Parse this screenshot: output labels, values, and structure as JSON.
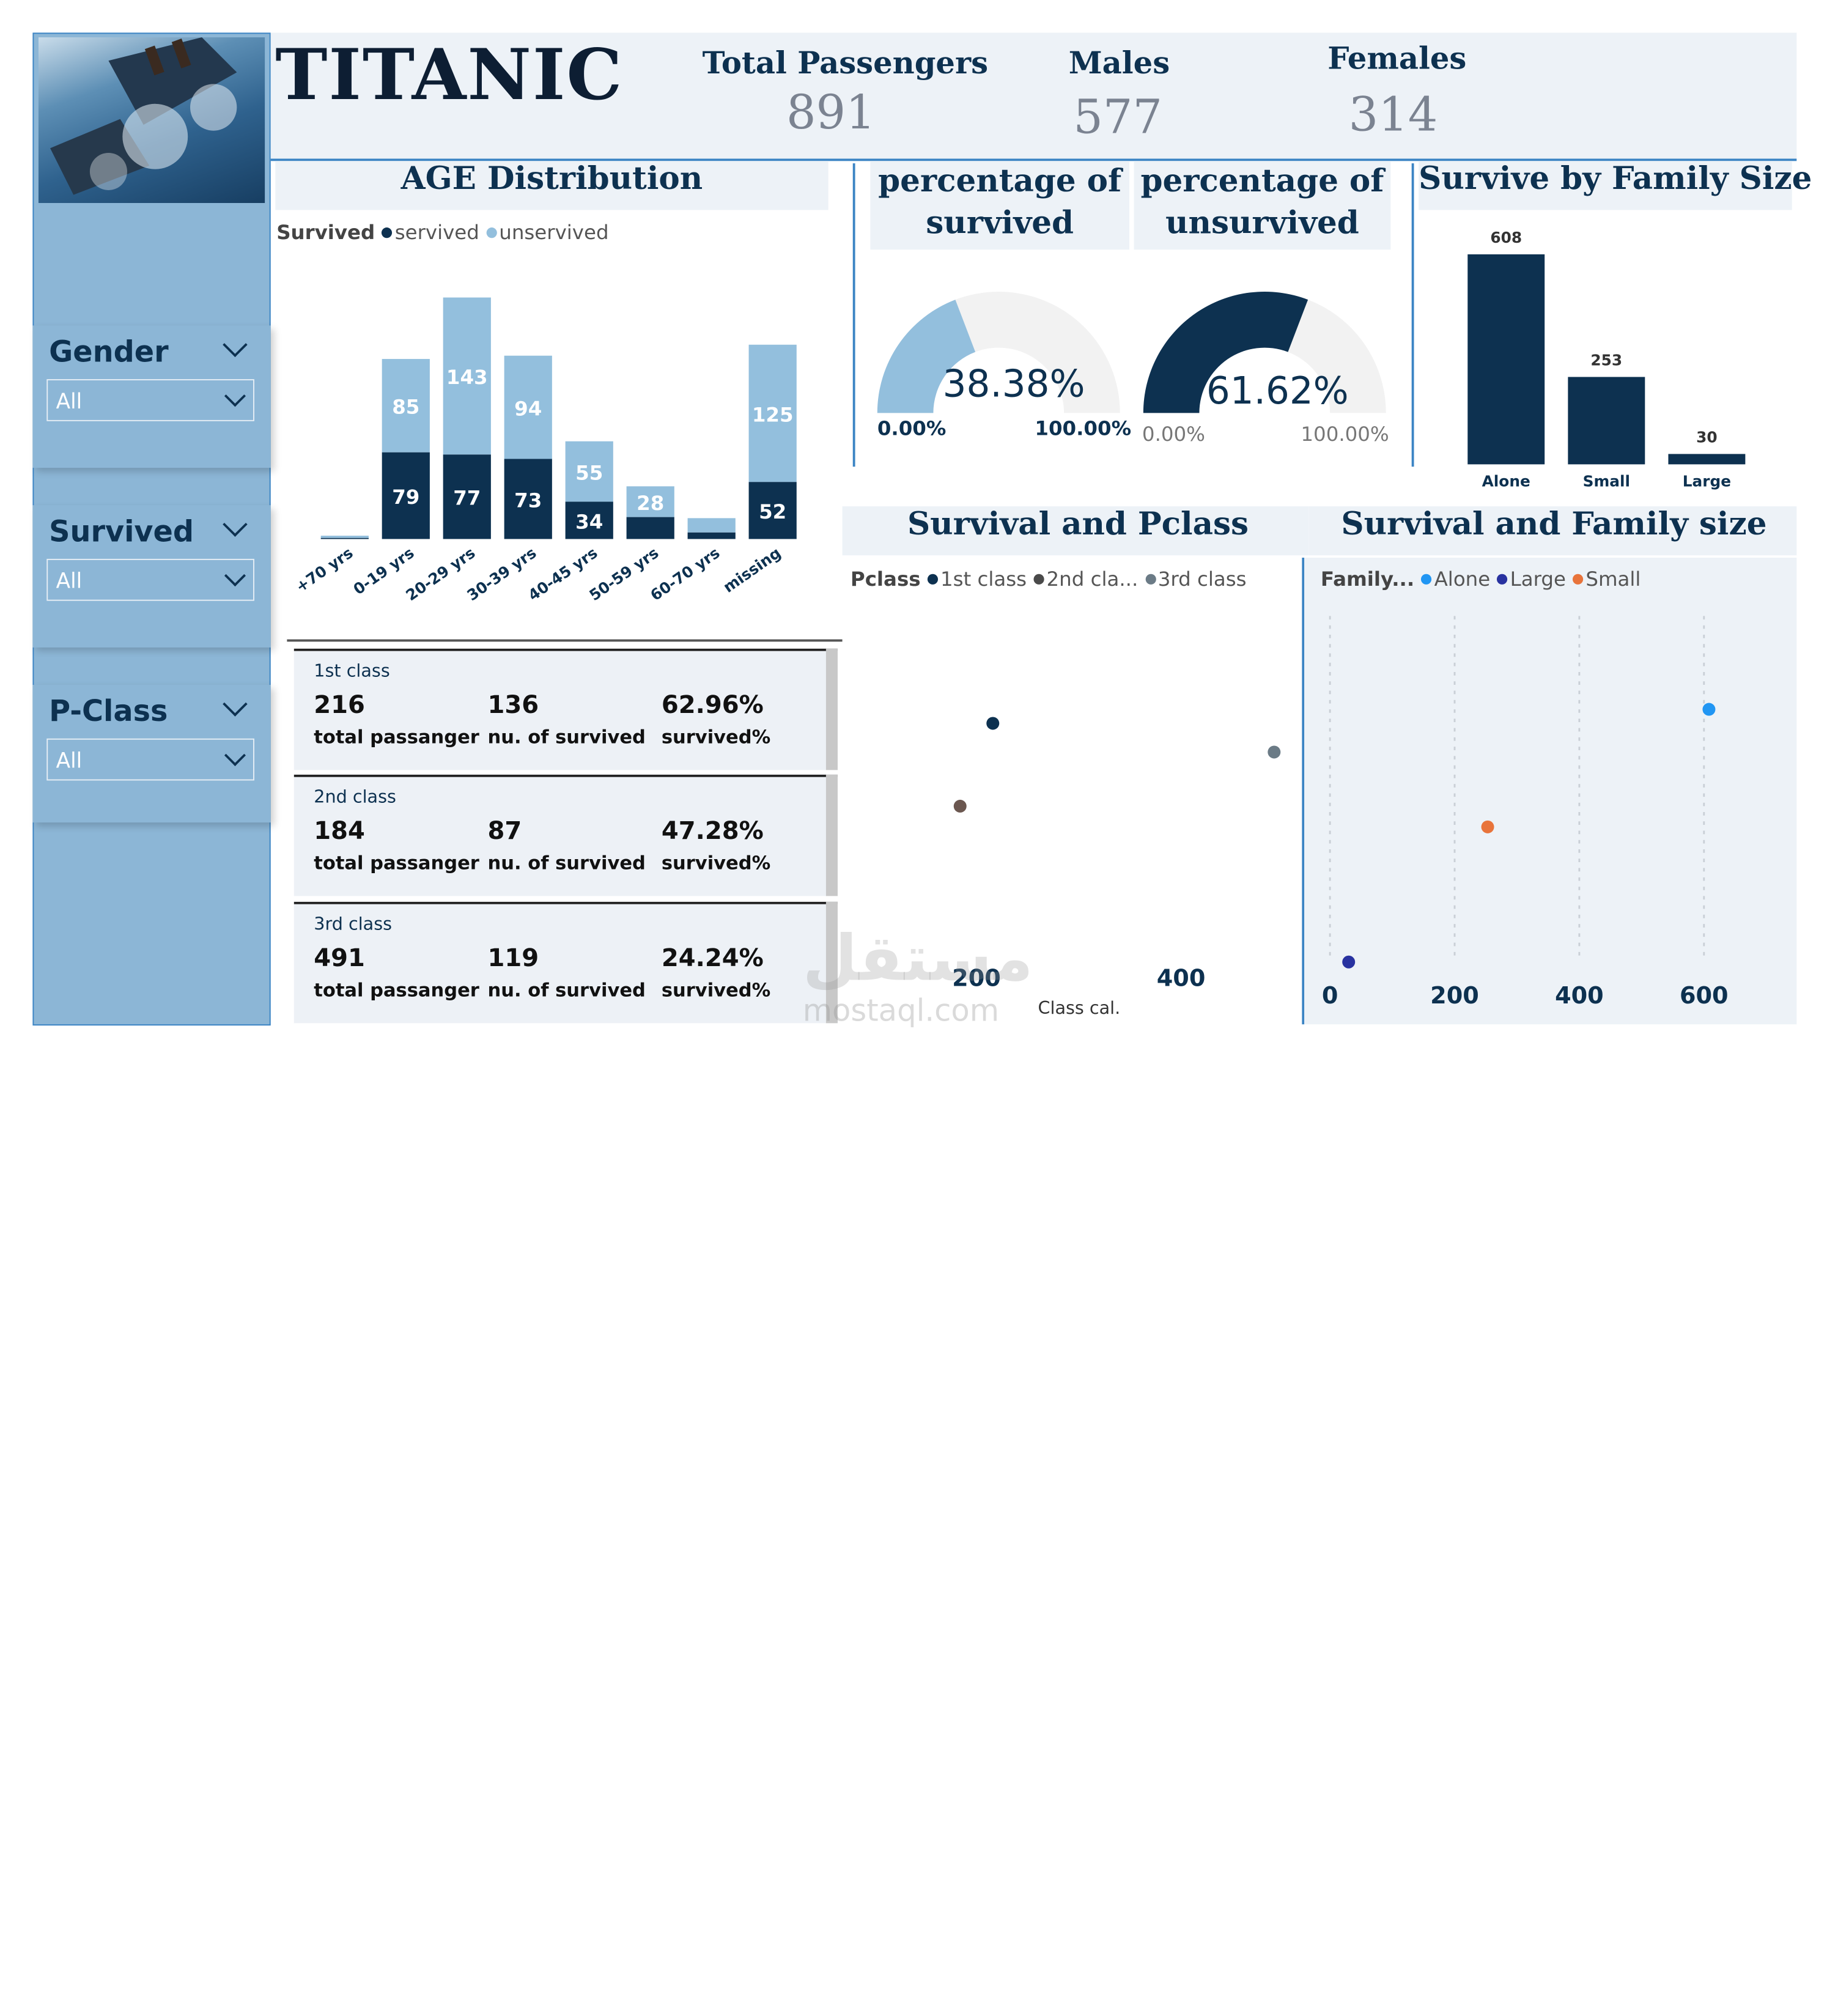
{
  "header": {
    "title": "TITANIC",
    "kpis": [
      {
        "label": "Total Passengers",
        "value": "891"
      },
      {
        "label": "Males",
        "value": "577"
      },
      {
        "label": "Females",
        "value": "314"
      }
    ]
  },
  "slicers": [
    {
      "title": "Gender",
      "value": "All"
    },
    {
      "title": "Survived",
      "value": "All"
    },
    {
      "title": "P-Class",
      "value": "All"
    }
  ],
  "age_panel": {
    "title": "AGE Distribution",
    "legend_title": "Survived",
    "legend": [
      "servived",
      "unservived"
    ]
  },
  "gauges": [
    {
      "title_line1": "percentage of",
      "title_line2": "survived",
      "value_label": "38.38%",
      "min_label": "0.00%",
      "max_label": "100.00%",
      "fraction": 0.3838
    },
    {
      "title_line1": "percentage of",
      "title_line2": "unsurvived",
      "value_label": "61.62%",
      "min_label": "0.00%",
      "max_label": "100.00%",
      "fraction": 0.6162
    }
  ],
  "family_panel": {
    "title": "Survive by Family Size"
  },
  "class_cards": [
    {
      "title": "1st class",
      "total": "216",
      "total_label": "total passanger",
      "survived": "136",
      "survived_label": "nu. of survived",
      "pct": "62.96%",
      "pct_label": "survived%"
    },
    {
      "title": "2nd class",
      "total": "184",
      "total_label": "total passanger",
      "survived": "87",
      "survived_label": "nu. of survived",
      "pct": "47.28%",
      "pct_label": "survived%"
    },
    {
      "title": "3rd class",
      "total": "491",
      "total_label": "total passanger",
      "survived": "119",
      "survived_label": "nu. of survived",
      "pct": "24.24%",
      "pct_label": "survived%"
    }
  ],
  "pclass_panel": {
    "title": "Survival and Pclass",
    "legend_title": "Pclass",
    "legend": [
      "1st class",
      "2nd cla...",
      "3rd class"
    ],
    "xlabel": "Class cal."
  },
  "famsize_panel": {
    "title": "Survival and Family size",
    "legend_title": "Family...",
    "legend": [
      "Alone",
      "Large",
      "Small"
    ]
  },
  "watermark": {
    "arabic": "مستقل",
    "latin": "mostaql.com"
  },
  "colors": {
    "navy": "#0d3150",
    "light_blue": "#93bfdd",
    "sidebar": "#8cb6d6",
    "panel_bg": "#edf2f7",
    "alone": "#2196f3",
    "large": "#2832a0",
    "small": "#e8743b",
    "grey_dot": "#6b7b86",
    "brown_dot": "#6b5750"
  },
  "chart_data": [
    {
      "type": "bar",
      "stacked": true,
      "categories": [
        "+70 yrs",
        "0-19 yrs",
        "20-29 yrs",
        "30-39 yrs",
        "40-45 yrs",
        "50-59 yrs",
        "60-70 yrs",
        "missing"
      ],
      "series": [
        {
          "name": "servived",
          "values": [
            1,
            79,
            77,
            73,
            34,
            20,
            6,
            52
          ]
        },
        {
          "name": "unservived",
          "values": [
            2,
            85,
            143,
            94,
            55,
            28,
            13,
            125
          ]
        }
      ]
    },
    {
      "type": "bar",
      "categories": [
        "Alone",
        "Small",
        "Large"
      ],
      "values": [
        608,
        253,
        30
      ]
    },
    {
      "type": "scatter",
      "xlabel": "Class cal.",
      "xticks": [
        200,
        400
      ],
      "series": [
        {
          "name": "1st class",
          "x": [
            216
          ],
          "y": [
            136
          ]
        },
        {
          "name": "2nd cla...",
          "x": [
            184
          ],
          "y": [
            87
          ]
        },
        {
          "name": "3rd class",
          "x": [
            491
          ],
          "y": [
            119
          ]
        }
      ]
    },
    {
      "type": "scatter",
      "xticks": [
        0,
        200,
        400,
        600
      ],
      "series": [
        {
          "name": "Alone",
          "x": [
            608
          ],
          "y": [
            163
          ]
        },
        {
          "name": "Large",
          "x": [
            30
          ],
          "y": [
            4
          ]
        },
        {
          "name": "Small",
          "x": [
            253
          ],
          "y": [
            89
          ]
        }
      ]
    }
  ]
}
